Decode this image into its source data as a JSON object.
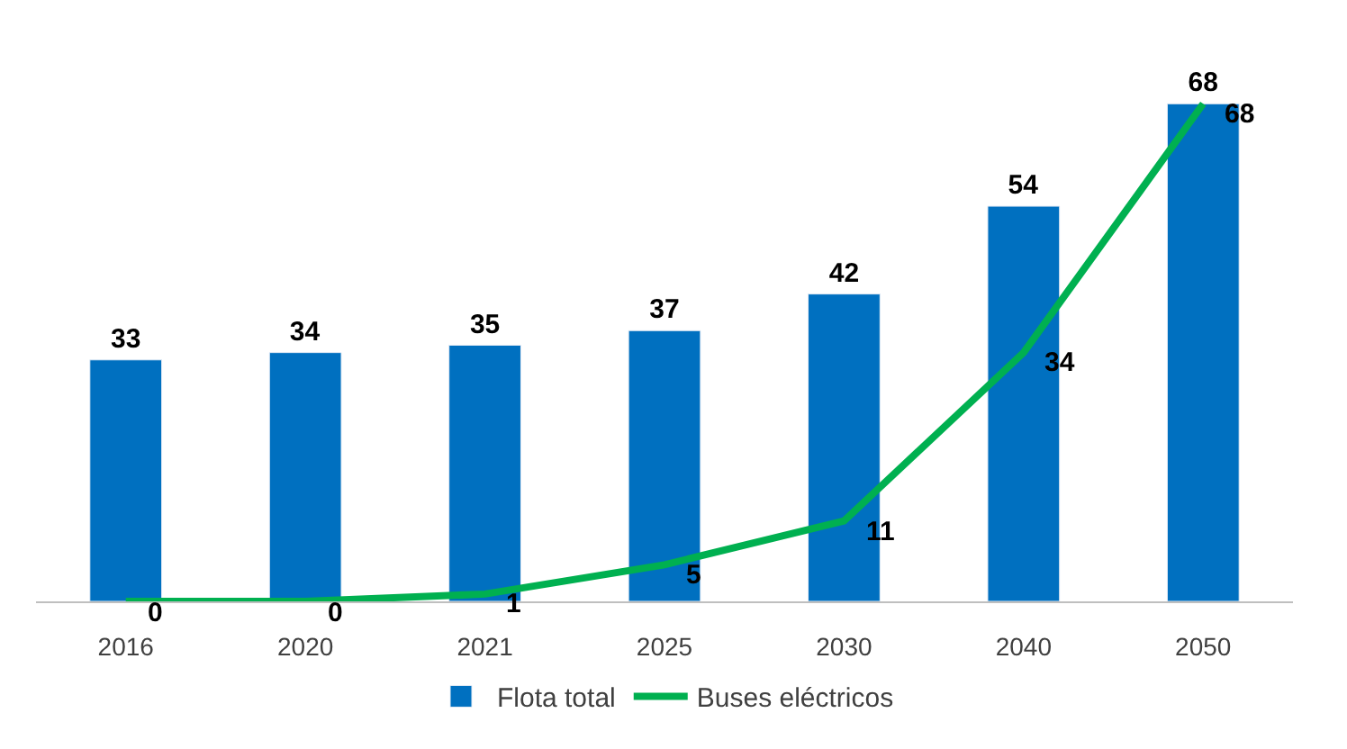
{
  "chart_data": {
    "type": "bar",
    "categories": [
      "2016",
      "2020",
      "2021",
      "2025",
      "2030",
      "2040",
      "2050"
    ],
    "series": [
      {
        "name": "Flota total",
        "color": "#0070c0",
        "values": [
          33,
          34,
          35,
          37,
          42,
          54,
          68
        ]
      },
      {
        "name": "Buses eléctricos",
        "type": "line",
        "color": "#00b050",
        "values": [
          0,
          0,
          1,
          5,
          11,
          34,
          68
        ]
      }
    ],
    "data_labels": true,
    "legend": "bottom",
    "marker": "none",
    "line_style": "solid",
    "tick_labels": "x"
  }
}
